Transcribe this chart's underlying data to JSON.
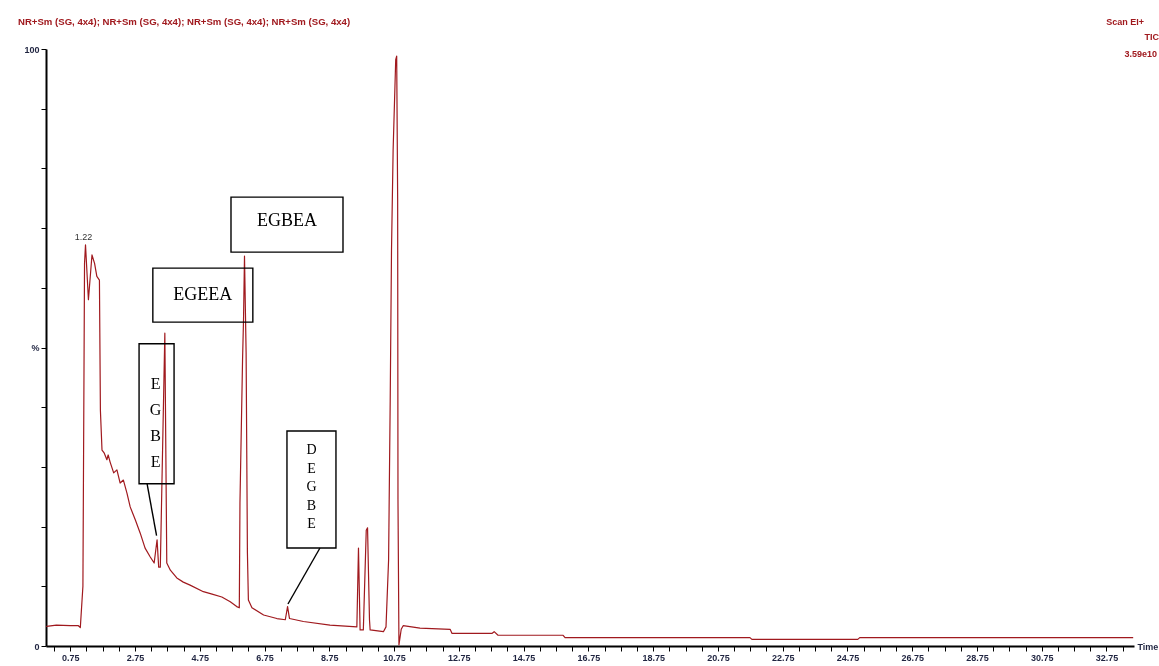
{
  "chart_data": {
    "type": "line",
    "title": "NR+Sm (SG, 4x4); NR+Sm (SG, 4x4); NR+Sm (SG, 4x4); NR+Sm (SG, 4x4)",
    "xlabel": "Time",
    "annotations": [
      "Scan EI+",
      "TIC",
      "3.59e10",
      {
        "text": "1.22",
        "x": 1.22,
        "y": 67.2
      },
      {
        "text": "EGBE",
        "x": 3.43,
        "y": 17.8
      },
      {
        "text": "EGEEA",
        "x": 3.67,
        "y": 52.4
      },
      {
        "text": "EGBEA",
        "x": 6.13,
        "y": 65.3
      },
      {
        "text": "DEGBE",
        "x": 7.46,
        "y": 6.6
      }
    ],
    "x": [
      0.02,
      0.32,
      0.75,
      1.0,
      1.06,
      1.14,
      1.19,
      1.22,
      1.31,
      1.42,
      1.5,
      1.57,
      1.65,
      1.68,
      1.73,
      1.8,
      1.88,
      1.92,
      1.98,
      2.09,
      2.19,
      2.29,
      2.39,
      2.5,
      2.6,
      2.76,
      2.91,
      3.06,
      3.22,
      3.34,
      3.43,
      3.48,
      3.53,
      3.67,
      3.73,
      3.84,
      4.04,
      4.24,
      4.45,
      4.86,
      5.13,
      5.43,
      5.69,
      5.89,
      5.97,
      5.99,
      6.07,
      6.1,
      6.13,
      6.18,
      6.22,
      6.25,
      6.36,
      6.72,
      7.13,
      7.39,
      7.46,
      7.52,
      7.95,
      8.77,
      9.6,
      9.65,
      9.7,
      9.8,
      9.89,
      9.93,
      9.99,
      10.01,
      10.42,
      10.5,
      10.58,
      10.63,
      10.67,
      10.72,
      10.8,
      10.83,
      10.86,
      10.87,
      10.9,
      10.97,
      11.03,
      11.55,
      12.48,
      12.54,
      13.77,
      13.84,
      13.96,
      15.97,
      16.03,
      21.74,
      21.8,
      25.07,
      25.13,
      33.56
    ],
    "series": [
      {
        "color": "#a0191e",
        "values": [
          3.3,
          3.5,
          3.4,
          3.4,
          3.1,
          10.0,
          64.1,
          67.2,
          58.0,
          65.5,
          64.1,
          61.9,
          61.3,
          39.5,
          32.8,
          32.3,
          31.2,
          32.0,
          30.8,
          29.0,
          29.5,
          27.3,
          27.8,
          25.6,
          23.3,
          21.1,
          18.9,
          16.4,
          14.9,
          13.9,
          17.8,
          13.2,
          13.2,
          52.4,
          13.9,
          12.7,
          11.4,
          10.7,
          10.2,
          9.1,
          8.7,
          8.2,
          7.4,
          6.6,
          6.4,
          24.0,
          47.9,
          54.6,
          65.3,
          49.1,
          15.6,
          7.7,
          6.4,
          5.2,
          4.6,
          4.4,
          6.6,
          4.6,
          4.1,
          3.5,
          3.2,
          16.4,
          2.7,
          2.7,
          19.4,
          19.8,
          4.4,
          2.7,
          2.4,
          3.2,
          14.4,
          41.2,
          66.3,
          83.1,
          98.2,
          98.8,
          74.7,
          24.5,
          0.2,
          2.8,
          3.4,
          3.0,
          2.8,
          2.1,
          2.1,
          2.4,
          1.8,
          1.8,
          1.4,
          1.4,
          1.1,
          1.1,
          1.4,
          1.4
        ]
      }
    ],
    "xlim": [
      0,
      33.6
    ],
    "ylim": [
      0,
      100
    ],
    "xticks": [
      {
        "value": 0.25,
        "label": null
      },
      0.75,
      {
        "value": 1.25,
        "label": null
      },
      {
        "value": 1.75,
        "label": null
      },
      {
        "value": 2.25,
        "label": null
      },
      2.75,
      {
        "value": 3.25,
        "label": null
      },
      {
        "value": 3.75,
        "label": null
      },
      {
        "value": 4.25,
        "label": null
      },
      4.75,
      {
        "value": 5.25,
        "label": null
      },
      {
        "value": 5.75,
        "label": null
      },
      {
        "value": 6.25,
        "label": null
      },
      6.75,
      {
        "value": 7.25,
        "label": null
      },
      {
        "value": 7.75,
        "label": null
      },
      {
        "value": 8.25,
        "label": null
      },
      8.75,
      {
        "value": 9.25,
        "label": null
      },
      {
        "value": 9.75,
        "label": null
      },
      {
        "value": 10.25,
        "label": null
      },
      10.75,
      {
        "value": 11.25,
        "label": null
      },
      {
        "value": 11.75,
        "label": null
      },
      {
        "value": 12.25,
        "label": null
      },
      12.75,
      {
        "value": 13.25,
        "label": null
      },
      {
        "value": 13.75,
        "label": null
      },
      {
        "value": 14.25,
        "label": null
      },
      14.75,
      {
        "value": 15.25,
        "label": null
      },
      {
        "value": 15.75,
        "label": null
      },
      {
        "value": 16.25,
        "label": null
      },
      16.75,
      {
        "value": 17.25,
        "label": null
      },
      {
        "value": 17.75,
        "label": null
      },
      {
        "value": 18.25,
        "label": null
      },
      18.75,
      {
        "value": 19.25,
        "label": null
      },
      {
        "value": 19.75,
        "label": null
      },
      {
        "value": 20.25,
        "label": null
      },
      20.75,
      {
        "value": 21.25,
        "label": null
      },
      {
        "value": 21.75,
        "label": null
      },
      {
        "value": 22.25,
        "label": null
      },
      22.75,
      {
        "value": 23.25,
        "label": null
      },
      {
        "value": 23.75,
        "label": null
      },
      {
        "value": 24.25,
        "label": null
      },
      24.75,
      {
        "value": 25.25,
        "label": null
      },
      {
        "value": 25.75,
        "label": null
      },
      {
        "value": 26.25,
        "label": null
      },
      26.75,
      {
        "value": 27.25,
        "label": null
      },
      {
        "value": 27.75,
        "label": null
      },
      {
        "value": 28.25,
        "label": null
      },
      28.75,
      {
        "value": 29.25,
        "label": null
      },
      {
        "value": 29.75,
        "label": null
      },
      {
        "value": 30.25,
        "label": null
      },
      30.75,
      {
        "value": 31.25,
        "label": null
      },
      {
        "value": 31.75,
        "label": null
      },
      {
        "value": 32.25,
        "label": null
      },
      32.75,
      {
        "value": 33.25,
        "label": null
      }
    ],
    "yticks": [
      0,
      {
        "value": 10,
        "label": null
      },
      {
        "value": 20,
        "label": null
      },
      {
        "value": 30,
        "label": null
      },
      {
        "value": 40,
        "label": null
      },
      {
        "value": 50,
        "label": "%"
      },
      {
        "value": 60,
        "label": null
      },
      {
        "value": 70,
        "label": null
      },
      {
        "value": 80,
        "label": null
      },
      {
        "value": 90,
        "label": null
      },
      100
    ],
    "grid": false
  }
}
